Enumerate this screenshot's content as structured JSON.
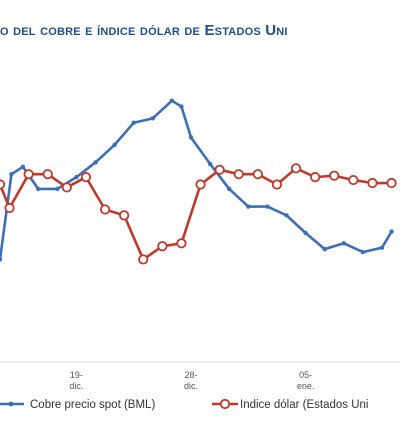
{
  "chart_data": {
    "type": "line",
    "title": "o del cobre e índice dólar de Estados Uni",
    "x_ticks": [
      {
        "index": 0,
        "lines": [
          ""
        ]
      },
      {
        "index": 4,
        "lines": [
          "19-",
          "dic."
        ]
      },
      {
        "index": 10,
        "lines": [
          "28-",
          "dic."
        ]
      },
      {
        "index": 16,
        "lines": [
          "05-",
          "ene."
        ]
      }
    ],
    "grid": false,
    "legend_position": "bottom",
    "series": [
      {
        "name": "Cobre precio spot (BML)",
        "color": "#3b6fb6",
        "marker": "filled",
        "x": [
          0,
          0.6,
          1.2,
          2,
          3,
          4,
          5,
          6,
          7,
          8,
          9,
          9.5,
          10,
          11,
          12,
          13,
          14,
          15,
          16,
          17,
          18,
          19,
          20,
          20.5
        ],
        "values": [
          82,
          140,
          145,
          130,
          130,
          138,
          148,
          160,
          175,
          178,
          190,
          186,
          165,
          147,
          130,
          118,
          118,
          112,
          100,
          89,
          93,
          87,
          90,
          101
        ]
      },
      {
        "name": "Indice dólar (Estados Unidos)",
        "color": "#c0392b",
        "marker": "hollow",
        "x": [
          0,
          0.5,
          1.5,
          2.5,
          3.5,
          4.5,
          5.5,
          6.5,
          7.5,
          8.5,
          9.5,
          10.5,
          11.5,
          12.5,
          13.5,
          14.5,
          15.5,
          16.5,
          17.5,
          18.5,
          19.5,
          20.5
        ],
        "values": [
          133,
          117,
          140,
          140,
          131,
          138,
          116,
          112,
          82,
          91,
          93,
          133,
          143,
          140,
          140,
          133,
          144,
          138,
          139,
          136,
          134,
          134
        ]
      }
    ],
    "legend": [
      {
        "label": "Cobre precio spot (BML)",
        "color": "#3b6fb6",
        "marker": "filled"
      },
      {
        "label": "Indice dólar (Estados Uni",
        "color": "#c0392b",
        "marker": "hollow"
      }
    ]
  }
}
